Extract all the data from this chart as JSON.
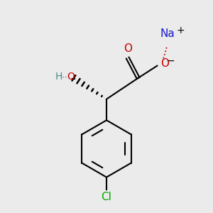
{
  "background_color": "#ebebeb",
  "bond_color": "#000000",
  "o_color": "#cc0000",
  "na_color": "#1a1acc",
  "cl_color": "#00aa00",
  "ho_color": "#4a8888",
  "figsize": [
    3.0,
    3.0
  ],
  "dpi": 100,
  "xlim": [
    0,
    10
  ],
  "ylim": [
    0,
    10
  ]
}
